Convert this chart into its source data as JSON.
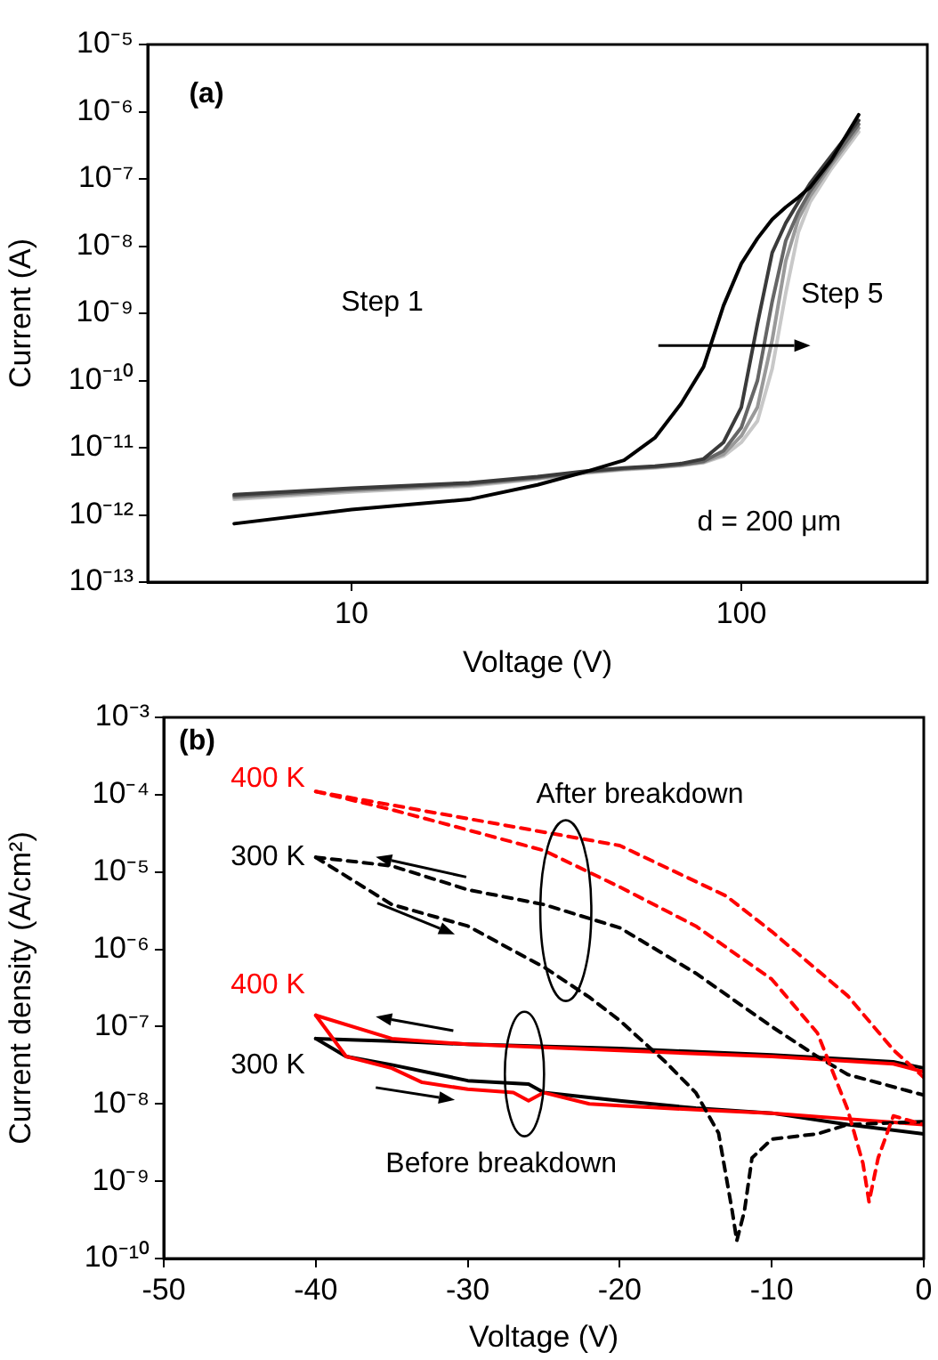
{
  "chart_data": [
    {
      "type": "line",
      "xlabel": "Voltage (V)",
      "ylabel": "Current (A)",
      "log": "xy",
      "xlim": [
        3,
        300
      ],
      "xticks": [
        10,
        100
      ],
      "ylim": [
        1e-13,
        1e-05
      ],
      "yticks": [
        {
          "value": 1e-13,
          "label": "10⁻¹³"
        },
        {
          "value": 1e-12,
          "label": "10⁻¹²"
        },
        {
          "value": 1e-11,
          "label": "10⁻¹¹"
        },
        {
          "value": 1e-10,
          "label": "10⁻¹⁰"
        },
        {
          "value": 1e-09,
          "label": "10⁻⁹"
        },
        {
          "value": 1e-08,
          "label": "10⁻⁸"
        },
        {
          "value": 1e-07,
          "label": "10⁻⁷"
        },
        {
          "value": 1e-06,
          "label": "10⁻⁶"
        },
        {
          "value": 1e-05,
          "label": "10⁻⁵"
        }
      ],
      "marker": "none",
      "line_style": "solid",
      "annotations": [
        "(a)",
        "Step 1",
        "Step 5",
        "d = 200 μm"
      ],
      "x": [
        5,
        10,
        20,
        30,
        40,
        50,
        60,
        70,
        80,
        90,
        100,
        110,
        120,
        130,
        140,
        150,
        170,
        200
      ],
      "series": [
        {
          "color": "#000000",
          "values": [
            7.4e-13,
            1.2e-12,
            1.7e-12,
            2.8e-12,
            4.4e-12,
            6.5e-12,
            1.4e-11,
            4.5e-11,
            1.6e-10,
            1.3e-09,
            5.5e-09,
            1.3e-08,
            2.5e-08,
            3.8e-08,
            5.3e-08,
            7.5e-08,
            1.9e-07,
            9e-07
          ]
        },
        {
          "color": "#3a3a3a",
          "values": [
            2e-12,
            2.5e-12,
            3e-12,
            3.7e-12,
            4.5e-12,
            5e-12,
            5.3e-12,
            5.8e-12,
            6.8e-12,
            1.2e-11,
            4e-11,
            7e-10,
            8e-09,
            2.2e-08,
            4.5e-08,
            8.5e-08,
            2.2e-07,
            7.4e-07
          ]
        },
        {
          "color": "#666666",
          "values": [
            1.9e-12,
            2.4e-12,
            2.9e-12,
            3.6e-12,
            4.4e-12,
            4.9e-12,
            5.2e-12,
            5.6e-12,
            6.3e-12,
            9e-12,
            2e-11,
            1e-10,
            1.5e-09,
            1.2e-08,
            3.2e-08,
            6.5e-08,
            1.8e-07,
            6.5e-07
          ]
        },
        {
          "color": "#999999",
          "values": [
            1.8e-12,
            2.3e-12,
            2.8e-12,
            3.5e-12,
            4.3e-12,
            4.8e-12,
            5.1e-12,
            5.5e-12,
            6.1e-12,
            8e-12,
            1.5e-11,
            4e-11,
            4e-10,
            6e-09,
            2.5e-08,
            5.5e-08,
            1.6e-07,
            5.7e-07
          ]
        },
        {
          "color": "#c8c8c8",
          "values": [
            1.7e-12,
            2.2e-12,
            2.7e-12,
            3.4e-12,
            4.2e-12,
            4.7e-12,
            5e-12,
            5.4e-12,
            6e-12,
            7.5e-12,
            1.2e-11,
            2.5e-11,
            1.5e-10,
            2e-09,
            1.6e-08,
            4.5e-08,
            1.4e-07,
            5e-07
          ]
        }
      ]
    },
    {
      "type": "line",
      "xlabel": "Voltage (V)",
      "ylabel": "Current density (A/cm²)",
      "log": "y",
      "xlim": [
        -50,
        0
      ],
      "xticks": [
        -50,
        -40,
        -30,
        -20,
        -10,
        0
      ],
      "ylim": [
        1e-10,
        0.001
      ],
      "yticks": [
        {
          "value": 1e-10,
          "label": "10⁻¹⁰"
        },
        {
          "value": 1e-09,
          "label": "10⁻⁹"
        },
        {
          "value": 1e-08,
          "label": "10⁻⁸"
        },
        {
          "value": 1e-07,
          "label": "10⁻⁷"
        },
        {
          "value": 1e-06,
          "label": "10⁻⁶"
        },
        {
          "value": 1e-05,
          "label": "10⁻⁵"
        },
        {
          "value": 0.0001,
          "label": "10⁻⁴"
        },
        {
          "value": 0.001,
          "label": "10⁻³"
        }
      ],
      "marker": "none",
      "annotations": [
        "(b)",
        "After breakdown",
        "Before breakdown"
      ],
      "series": [
        {
          "name": "400 K",
          "color": "#ff0000",
          "line_style": "dashed",
          "x": [
            -40,
            -35,
            -30,
            -25,
            -20,
            -15,
            -10,
            -7,
            -5,
            -4,
            -3.6,
            -3,
            -2,
            0
          ],
          "values": [
            0.00011,
            6.4e-05,
            3.5e-05,
            1.9e-05,
            6.4e-06,
            2e-06,
            4.1e-07,
            8.3e-08,
            8.4e-09,
            1.7e-09,
            5.4e-10,
            2e-09,
            7e-09,
            5.4e-09
          ]
        },
        {
          "color": "#ff0000",
          "line_style": "dashed",
          "x": [
            -40,
            -30,
            -20,
            -13,
            -10,
            -5,
            -2,
            0
          ],
          "values": [
            0.00011,
            4.9e-05,
            2.2e-05,
            4.9e-06,
            1.7e-06,
            2.5e-07,
            5e-08,
            2.2e-08
          ]
        },
        {
          "name": "300 K",
          "color": "#000000",
          "line_style": "dashed",
          "x": [
            -40,
            -35,
            -30,
            -25,
            -22,
            -20,
            -17,
            -15,
            -13.5,
            -12.6,
            -12.3,
            -11.8,
            -11.3,
            -10,
            -7,
            -5,
            0
          ],
          "values": [
            1.55e-05,
            3.8e-06,
            2e-06,
            5.9e-07,
            2.4e-07,
            1.2e-07,
            3.5e-08,
            1.4e-08,
            4.2e-09,
            4.1e-10,
            1.7e-10,
            4.1e-10,
            2e-09,
            3.5e-09,
            4.1e-09,
            5.4e-09,
            5.9e-09
          ]
        },
        {
          "color": "#000000",
          "line_style": "dashed",
          "x": [
            -40,
            -35,
            -30,
            -25,
            -20,
            -15,
            -10,
            -7,
            -5,
            0
          ],
          "values": [
            1.55e-05,
            1.2e-05,
            5.9e-06,
            3.8e-06,
            1.9e-06,
            4.9e-07,
            1e-07,
            4.1e-08,
            2.4e-08,
            1.3e-08
          ]
        },
        {
          "name": "400 K",
          "color": "#ff0000",
          "line_style": "solid",
          "x": [
            -40,
            -38,
            -35,
            -33,
            -30,
            -27,
            -26,
            -25,
            -22,
            -20,
            -15,
            -10,
            -5,
            0
          ],
          "values": [
            1.4e-07,
            4.1e-08,
            2.9e-08,
            1.9e-08,
            1.55e-08,
            1.4e-08,
            1.1e-08,
            1.4e-08,
            1e-08,
            9.5e-09,
            8.4e-09,
            7.6e-09,
            6.4e-09,
            5.4e-09
          ]
        },
        {
          "color": "#ff0000",
          "line_style": "solid",
          "x": [
            -40,
            -35,
            -30,
            -20,
            -10,
            -2,
            0
          ],
          "values": [
            1.4e-07,
            7e-08,
            5.9e-08,
            4.9e-08,
            4.1e-08,
            3.3e-08,
            2.6e-08
          ]
        },
        {
          "name": "300 K",
          "color": "#000000",
          "line_style": "solid",
          "x": [
            -40,
            -38,
            -35,
            -30,
            -26,
            -25,
            -20,
            -15,
            -10,
            -5,
            0
          ],
          "values": [
            7e-08,
            4.1e-08,
            3.2e-08,
            2e-08,
            1.8e-08,
            1.4e-08,
            1.1e-08,
            8.8e-09,
            7.6e-09,
            5.4e-09,
            4.1e-09
          ]
        },
        {
          "color": "#000000",
          "line_style": "solid",
          "x": [
            -40,
            -35,
            -30,
            -20,
            -10,
            -2,
            0
          ],
          "values": [
            7e-08,
            6.5e-08,
            5.9e-08,
            5.2e-08,
            4.3e-08,
            3.5e-08,
            2.9e-08
          ]
        }
      ]
    }
  ]
}
